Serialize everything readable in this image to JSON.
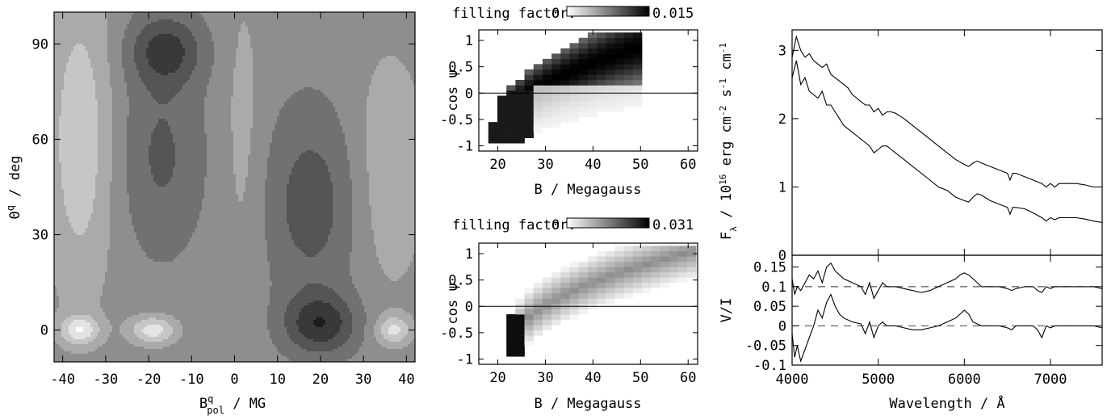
{
  "chart_data": [
    {
      "id": "contour",
      "type": "heatmap",
      "xlabel": "B",
      "xlabel_sup": "q",
      "xlabel_sub": "pol",
      "xlabel_unit": " / MG",
      "ylabel": "Θ",
      "ylabel_sup": "q",
      "ylabel_unit": " / deg",
      "xlim": [
        -42,
        42
      ],
      "ylim": [
        -10,
        100
      ],
      "xticks": [
        -40,
        -30,
        -20,
        -10,
        0,
        10,
        20,
        30,
        40
      ],
      "yticks": [
        0,
        30,
        60,
        90
      ],
      "dark_regions": [
        {
          "x": -16,
          "y": 88,
          "level": 0.45
        },
        {
          "x": 20,
          "y": 0,
          "level": 0.1
        },
        {
          "x": 20,
          "y": 45,
          "level": 0.45
        }
      ],
      "light_regions": [
        {
          "x": -19,
          "y": 0
        },
        {
          "x": -35,
          "y": 0
        },
        {
          "x": 36,
          "y": 0
        }
      ]
    },
    {
      "id": "map1",
      "type": "heatmap",
      "colorbar_label": "filling factor:",
      "colorbar_min": "0",
      "colorbar_max": "0.015",
      "xlabel": "B / Megagauss",
      "ylabel": "cos ψ",
      "xlim": [
        16,
        62
      ],
      "ylim": [
        -1.1,
        1.2
      ],
      "xticks": [
        20,
        30,
        40,
        50,
        60
      ],
      "yticks": [
        -1,
        -0.5,
        0,
        0.5,
        1
      ],
      "ytick_labels": [
        "-1",
        "-0.5",
        "0",
        "0.5",
        "1"
      ]
    },
    {
      "id": "map2",
      "type": "heatmap",
      "colorbar_label": "filling factor:",
      "colorbar_min": "0",
      "colorbar_max": "0.031",
      "xlabel": "B / Megagauss",
      "ylabel": "cos ψ",
      "xlim": [
        16,
        62
      ],
      "ylim": [
        -1.1,
        1.2
      ],
      "xticks": [
        20,
        30,
        40,
        50,
        60
      ],
      "yticks": [
        -1,
        -0.5,
        0,
        0.5,
        1
      ],
      "ytick_labels": [
        "-1",
        "-0.5",
        "0",
        "0.5",
        "1"
      ]
    },
    {
      "id": "flux",
      "type": "line",
      "ylabel": "F",
      "ylabel_sub": "λ",
      "ylabel_unit": " / 10",
      "ylabel_exp": "16",
      "ylabel_rest": " erg cm",
      "ylabel_exp2": "-2",
      "ylabel_rest2": " s",
      "ylabel_exp3": "-1",
      "ylabel_rest3": " cm",
      "ylabel_exp4": "-1",
      "xlim": [
        4000,
        7600
      ],
      "ylim": [
        0,
        3.3
      ],
      "yticks": [
        0,
        1,
        2,
        3
      ],
      "series": [
        {
          "x": [
            4000,
            4050,
            4100,
            4150,
            4200,
            4250,
            4300,
            4350,
            4400,
            4450,
            4500,
            4550,
            4600,
            4650,
            4700,
            4750,
            4800,
            4850,
            4900,
            4950,
            5000,
            5050,
            5100,
            5150,
            5200,
            5300,
            5400,
            5500,
            5600,
            5700,
            5800,
            5900,
            6000,
            6050,
            6100,
            6150,
            6200,
            6300,
            6400,
            6500,
            6530,
            6560,
            6600,
            6700,
            6800,
            6900,
            6950,
            7000,
            7050,
            7100,
            7200,
            7300,
            7400,
            7500,
            7600
          ],
          "y": [
            2.9,
            3.2,
            3.0,
            2.9,
            2.95,
            2.85,
            2.8,
            2.75,
            2.8,
            2.65,
            2.6,
            2.55,
            2.5,
            2.45,
            2.35,
            2.3,
            2.25,
            2.2,
            2.2,
            2.1,
            2.15,
            2.05,
            2.1,
            2.1,
            2.08,
            2.0,
            1.9,
            1.8,
            1.7,
            1.6,
            1.5,
            1.4,
            1.33,
            1.3,
            1.35,
            1.38,
            1.35,
            1.3,
            1.25,
            1.2,
            1.1,
            1.2,
            1.2,
            1.15,
            1.1,
            1.05,
            1.0,
            1.05,
            1.0,
            1.05,
            1.05,
            1.05,
            1.03,
            1.0,
            1.0
          ]
        },
        {
          "x": [
            4000,
            4050,
            4100,
            4150,
            4200,
            4250,
            4300,
            4350,
            4400,
            4450,
            4500,
            4550,
            4600,
            4650,
            4700,
            4750,
            4800,
            4850,
            4900,
            4950,
            5000,
            5050,
            5100,
            5150,
            5200,
            5300,
            5400,
            5500,
            5600,
            5700,
            5800,
            5900,
            6000,
            6050,
            6100,
            6150,
            6200,
            6300,
            6400,
            6500,
            6530,
            6560,
            6600,
            6700,
            6800,
            6900,
            6950,
            7000,
            7050,
            7100,
            7200,
            7300,
            7400,
            7500,
            7600
          ],
          "y": [
            2.6,
            2.85,
            2.5,
            2.6,
            2.4,
            2.35,
            2.3,
            2.4,
            2.2,
            2.2,
            2.1,
            2.0,
            1.9,
            1.85,
            1.8,
            1.75,
            1.7,
            1.65,
            1.6,
            1.5,
            1.55,
            1.6,
            1.6,
            1.55,
            1.5,
            1.4,
            1.3,
            1.2,
            1.1,
            1.0,
            0.95,
            0.85,
            0.8,
            0.78,
            0.85,
            0.9,
            0.88,
            0.8,
            0.75,
            0.7,
            0.6,
            0.7,
            0.7,
            0.68,
            0.62,
            0.55,
            0.5,
            0.55,
            0.52,
            0.55,
            0.55,
            0.55,
            0.53,
            0.5,
            0.48
          ]
        }
      ]
    },
    {
      "id": "pol",
      "type": "line",
      "xlabel": "Wavelength / Å",
      "ylabel": "V/I",
      "xlim": [
        4000,
        7600
      ],
      "ylim": [
        -0.1,
        0.18
      ],
      "xticks": [
        4000,
        5000,
        6000,
        7000
      ],
      "yticks": [
        -0.1,
        -0.05,
        0,
        0.05,
        0.1,
        0.15
      ],
      "ytick_labels": [
        "-0.1",
        "-0.05",
        "0",
        "0.05",
        "0.1",
        "0.15"
      ],
      "reference_lines": [
        0.1,
        0
      ],
      "series": [
        {
          "x": [
            4000,
            4030,
            4060,
            4100,
            4150,
            4200,
            4250,
            4300,
            4350,
            4400,
            4450,
            4500,
            4550,
            4600,
            4700,
            4800,
            4850,
            4900,
            4950,
            5000,
            5050,
            5100,
            5150,
            5200,
            5300,
            5400,
            5500,
            5600,
            5700,
            5800,
            5900,
            5950,
            6000,
            6050,
            6100,
            6150,
            6200,
            6300,
            6400,
            6500,
            6550,
            6600,
            6700,
            6800,
            6850,
            6900,
            6950,
            7000,
            7050,
            7100,
            7200,
            7300,
            7400,
            7500,
            7600
          ],
          "y": [
            0.12,
            0.08,
            0.1,
            0.09,
            0.11,
            0.13,
            0.12,
            0.14,
            0.11,
            0.15,
            0.16,
            0.14,
            0.13,
            0.12,
            0.11,
            0.1,
            0.08,
            0.11,
            0.07,
            0.09,
            0.11,
            0.1,
            0.1,
            0.1,
            0.095,
            0.09,
            0.085,
            0.09,
            0.1,
            0.11,
            0.12,
            0.13,
            0.135,
            0.13,
            0.12,
            0.11,
            0.1,
            0.1,
            0.1,
            0.095,
            0.09,
            0.095,
            0.1,
            0.1,
            0.09,
            0.085,
            0.1,
            0.095,
            0.1,
            0.1,
            0.1,
            0.1,
            0.1,
            0.1,
            0.095
          ]
        },
        {
          "x": [
            4000,
            4030,
            4060,
            4100,
            4150,
            4200,
            4250,
            4300,
            4350,
            4400,
            4450,
            4500,
            4550,
            4600,
            4700,
            4800,
            4850,
            4900,
            4950,
            5000,
            5050,
            5100,
            5150,
            5200,
            5300,
            5400,
            5500,
            5600,
            5700,
            5800,
            5900,
            5950,
            6000,
            6050,
            6100,
            6150,
            6200,
            6300,
            6400,
            6500,
            6550,
            6600,
            6700,
            6800,
            6850,
            6900,
            6950,
            7000,
            7050,
            7100,
            7200,
            7300,
            7400,
            7500,
            7600
          ],
          "y": [
            -0.02,
            -0.08,
            -0.05,
            -0.09,
            -0.06,
            -0.03,
            0.0,
            0.04,
            0.02,
            0.06,
            0.08,
            0.05,
            0.03,
            0.02,
            0.01,
            0.005,
            -0.02,
            0.01,
            -0.03,
            0.0,
            0.01,
            0.0,
            0.0,
            0.0,
            -0.005,
            -0.01,
            -0.01,
            -0.005,
            0.0,
            0.01,
            0.02,
            0.03,
            0.04,
            0.03,
            0.01,
            0.005,
            0.0,
            0.0,
            0.0,
            -0.005,
            -0.01,
            0.0,
            0.0,
            0.0,
            -0.01,
            -0.03,
            0.0,
            -0.005,
            0.0,
            0.0,
            0.0,
            0.0,
            0.0,
            0.0,
            -0.005
          ]
        }
      ]
    }
  ]
}
